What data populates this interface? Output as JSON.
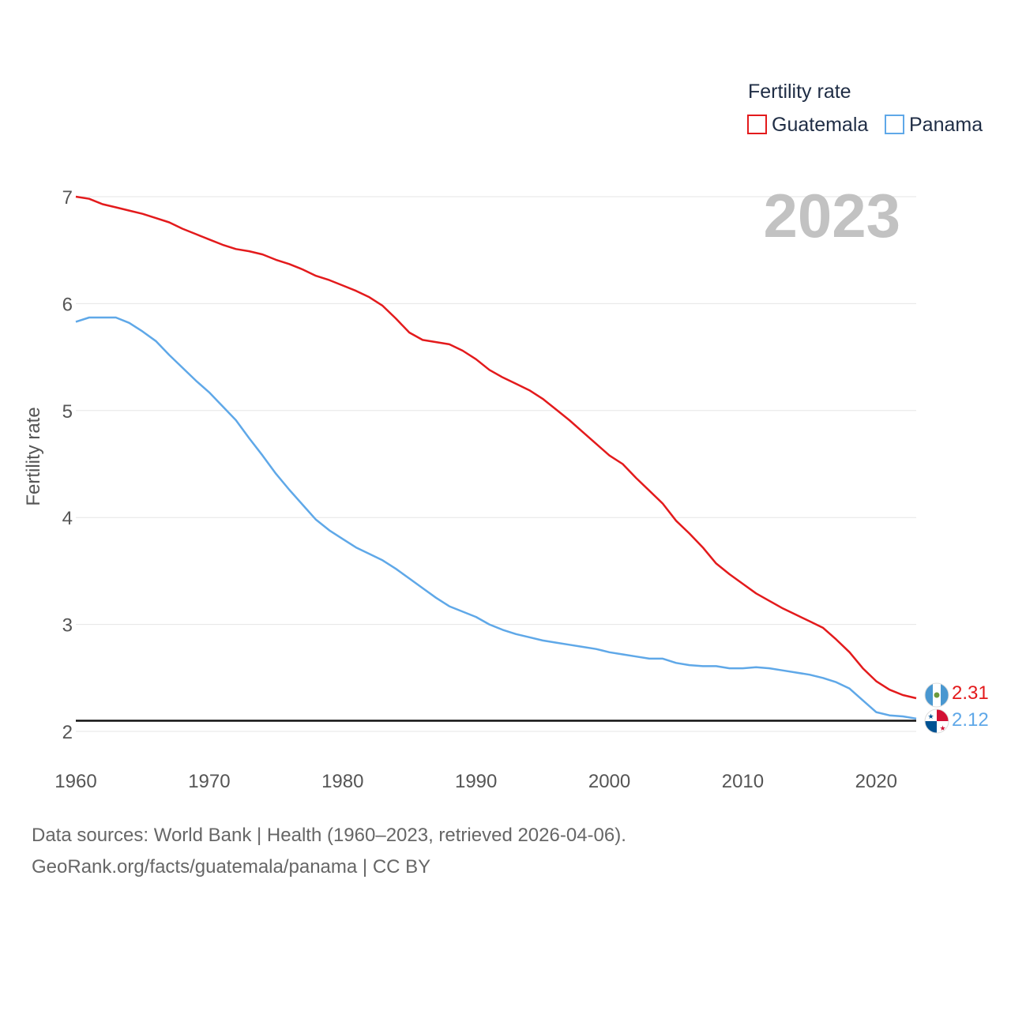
{
  "chart_data": {
    "type": "line",
    "title": "",
    "legend_title": "Fertility rate",
    "legend_position": "top-right",
    "current_year": "2023",
    "ylabel": "Fertility rate",
    "xlabel": "",
    "xlim": [
      1960,
      2023
    ],
    "ylim": [
      2,
      7
    ],
    "x_ticks": [
      1960,
      1970,
      1980,
      1990,
      2000,
      2010,
      2020
    ],
    "y_ticks": [
      2,
      3,
      4,
      5,
      6,
      7
    ],
    "reference_line": 2.1,
    "x": [
      1960,
      1961,
      1962,
      1963,
      1964,
      1965,
      1966,
      1967,
      1968,
      1969,
      1970,
      1971,
      1972,
      1973,
      1974,
      1975,
      1976,
      1977,
      1978,
      1979,
      1980,
      1981,
      1982,
      1983,
      1984,
      1985,
      1986,
      1987,
      1988,
      1989,
      1990,
      1991,
      1992,
      1993,
      1994,
      1995,
      1996,
      1997,
      1998,
      1999,
      2000,
      2001,
      2002,
      2003,
      2004,
      2005,
      2006,
      2007,
      2008,
      2009,
      2010,
      2011,
      2012,
      2013,
      2014,
      2015,
      2016,
      2017,
      2018,
      2019,
      2020,
      2021,
      2022,
      2023
    ],
    "series": [
      {
        "name": "Guatemala",
        "color": "#e31a1c",
        "end_label": "2.31",
        "values": [
          7.0,
          6.98,
          6.93,
          6.9,
          6.87,
          6.84,
          6.8,
          6.76,
          6.7,
          6.65,
          6.6,
          6.55,
          6.51,
          6.49,
          6.46,
          6.41,
          6.37,
          6.32,
          6.26,
          6.22,
          6.17,
          6.12,
          6.06,
          5.98,
          5.86,
          5.73,
          5.66,
          5.64,
          5.62,
          5.56,
          5.48,
          5.38,
          5.31,
          5.25,
          5.19,
          5.11,
          5.01,
          4.91,
          4.8,
          4.69,
          4.58,
          4.5,
          4.37,
          4.25,
          4.13,
          3.97,
          3.85,
          3.72,
          3.57,
          3.47,
          3.38,
          3.29,
          3.22,
          3.15,
          3.09,
          3.03,
          2.97,
          2.86,
          2.74,
          2.59,
          2.47,
          2.39,
          2.34,
          2.31
        ]
      },
      {
        "name": "Panama",
        "color": "#5fa8e8",
        "end_label": "2.12",
        "values": [
          5.83,
          5.87,
          5.87,
          5.87,
          5.82,
          5.74,
          5.65,
          5.52,
          5.4,
          5.28,
          5.17,
          5.04,
          4.91,
          4.74,
          4.58,
          4.41,
          4.26,
          4.12,
          3.98,
          3.88,
          3.8,
          3.72,
          3.66,
          3.6,
          3.52,
          3.43,
          3.34,
          3.25,
          3.17,
          3.12,
          3.07,
          3.0,
          2.95,
          2.91,
          2.88,
          2.85,
          2.83,
          2.81,
          2.79,
          2.77,
          2.74,
          2.72,
          2.7,
          2.68,
          2.68,
          2.64,
          2.62,
          2.61,
          2.61,
          2.59,
          2.59,
          2.6,
          2.59,
          2.57,
          2.55,
          2.53,
          2.5,
          2.46,
          2.4,
          2.29,
          2.18,
          2.15,
          2.14,
          2.12
        ]
      }
    ]
  },
  "footer": {
    "source": "Data sources: World Bank | Health (1960–2023, retrieved 2026-04-06).",
    "credit": "GeoRank.org/facts/guatemala/panama | CC BY"
  }
}
